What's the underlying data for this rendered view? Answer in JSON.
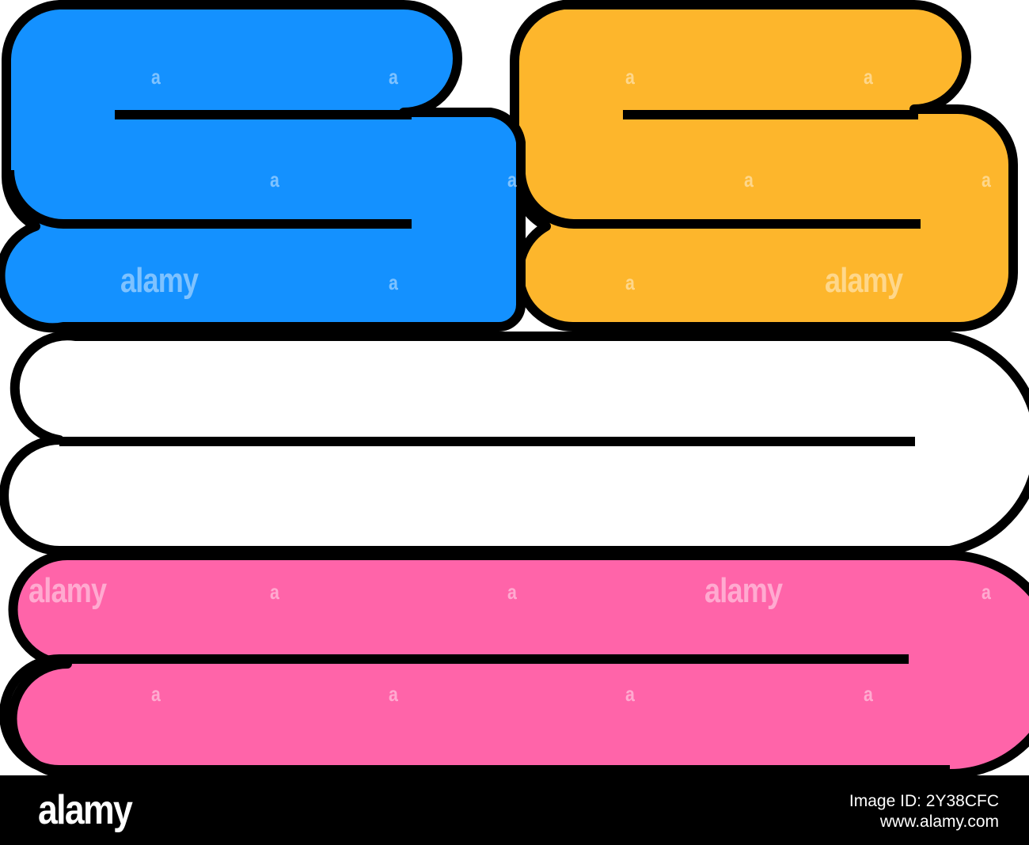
{
  "illustration": {
    "subject": "towels-stack-icon",
    "outline_color": "#000000",
    "colors": {
      "blue_towel": "#1491FF",
      "yellow_towel": "#FDB62C",
      "white_towel": "#FFFFFF",
      "pink_towel": "#FF64A9"
    }
  },
  "watermark": {
    "text": "alamy",
    "letter": "a"
  },
  "footer": {
    "logo": "alamy",
    "image_id": "Image ID: 2Y38CFC",
    "site": "www.alamy.com"
  }
}
